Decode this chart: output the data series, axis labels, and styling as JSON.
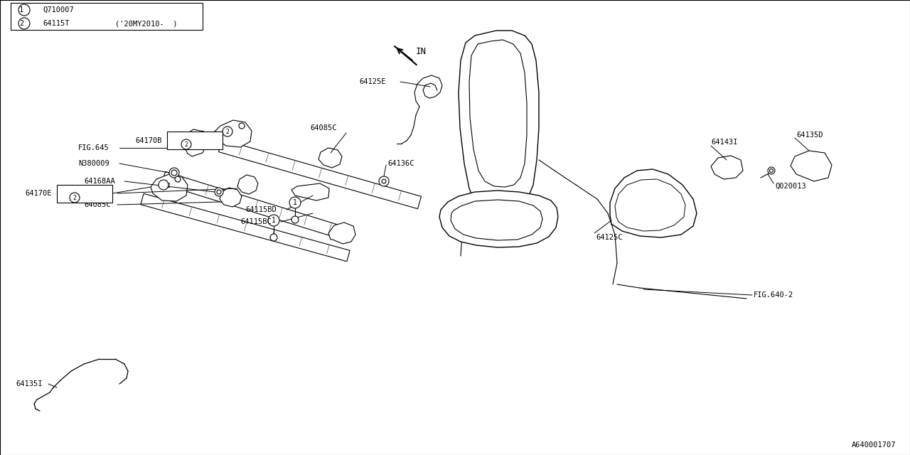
{
  "bg_color": "#ffffff",
  "line_color": "#000000",
  "font_color": "#000000",
  "diagram_id": "A640001707",
  "legend_row1_num": "1",
  "legend_row1_code": "Q710007",
  "legend_row2_num": "2",
  "legend_row2_code": "64115T",
  "legend_row2_desc": "('20MY2010-  )",
  "arrow_label": "IN"
}
